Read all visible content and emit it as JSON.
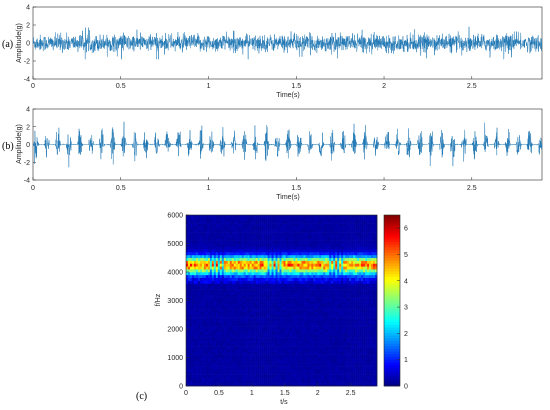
{
  "chart_data": [
    {
      "type": "line",
      "panel_label": "(a)",
      "xlabel": "Time(s)",
      "ylabel": "Amplitude(g)",
      "xlim": [
        0,
        2.9
      ],
      "ylim": [
        -4,
        4
      ],
      "x_ticks": [
        "0",
        "0.5",
        "1",
        "1.5",
        "2",
        "2.5"
      ],
      "y_ticks": [
        "-4",
        "-2",
        "0",
        "2",
        "4"
      ],
      "color": "#1f77b4",
      "signal": "continuous random vibration, peak amplitude about 1.5 g",
      "grid": false
    },
    {
      "type": "line",
      "panel_label": "(b)",
      "xlabel": "Time(s)",
      "ylabel": "Amplitude(g)",
      "xlim": [
        0,
        2.9
      ],
      "ylim": [
        -4,
        4
      ],
      "x_ticks": [
        "0",
        "0.5",
        "1",
        "1.5",
        "2",
        "2.5"
      ],
      "y_ticks": [
        "-4",
        "-2",
        "0",
        "2",
        "4"
      ],
      "color": "#1f77b4",
      "signal": "periodic impulsive bursts, peak amplitude about 2.5 g",
      "grid": false
    },
    {
      "type": "heatmap",
      "panel_label": "(c)",
      "xlabel": "t/s",
      "ylabel": "f/Hz",
      "xlim": [
        0,
        2.9
      ],
      "ylim": [
        0,
        6000
      ],
      "x_ticks": [
        "0",
        "0.5",
        "1",
        "1.5",
        "2",
        "2.5"
      ],
      "y_ticks": [
        "0",
        "1000",
        "2000",
        "3000",
        "4000",
        "5000",
        "6000"
      ],
      "colorbar_ticks": [
        "0",
        "1",
        "2",
        "3",
        "4",
        "5",
        "6"
      ],
      "colorbar_range": [
        0,
        6.5
      ],
      "colormap": "jet",
      "band_center_hz": 4250,
      "band_halfwidth_hz": 300,
      "band_peak_value": 5.0,
      "background_value": 0.15
    }
  ]
}
